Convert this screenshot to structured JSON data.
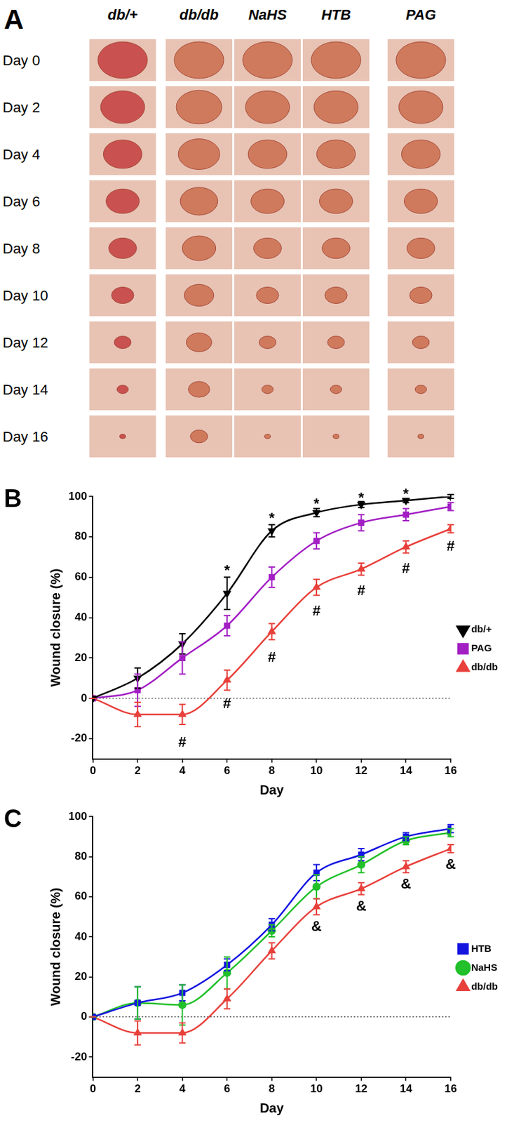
{
  "panel_a": {
    "title": "A",
    "columns": [
      "db/+",
      "db/db",
      "NaHS",
      "HTB",
      "PAG"
    ],
    "rows": [
      "Day 0",
      "Day 2",
      "Day 4",
      "Day 6",
      "Day 8",
      "Day 10",
      "Day 12",
      "Day 14",
      "Day 16"
    ]
  },
  "chart_data": [
    {
      "type": "line",
      "title": "B",
      "x_label": "Day",
      "y_label": "Wound closure (%)",
      "x": [
        0,
        2,
        4,
        6,
        8,
        10,
        12,
        14,
        16
      ],
      "xlim": [
        0,
        16
      ],
      "xticks": [
        0,
        2,
        4,
        6,
        8,
        10,
        12,
        14,
        16
      ],
      "ylim": [
        -30,
        100
      ],
      "yticks": [
        -20,
        0,
        20,
        40,
        60,
        80,
        100
      ],
      "grid": false,
      "legend": "right",
      "reference_line": {
        "y": 0,
        "line_style": "dotted"
      },
      "series": [
        {
          "name": "db/+",
          "color": "#000000",
          "marker": "triangle_down",
          "values": [
            0,
            10,
            27,
            52,
            83,
            92,
            96,
            98,
            100
          ],
          "errors": [
            0,
            5,
            5,
            8,
            3,
            2,
            1.5,
            1,
            1
          ]
        },
        {
          "name": "PAG",
          "color": "#a21fc4",
          "marker": "square",
          "values": [
            0,
            4,
            20,
            36,
            60,
            78,
            87,
            91,
            95
          ],
          "errors": [
            0,
            8,
            8,
            5,
            5,
            4,
            4,
            3,
            2
          ]
        },
        {
          "name": "db/db",
          "color": "#e8403b",
          "marker": "triangle",
          "values": [
            0,
            -8,
            -8,
            9,
            33,
            55,
            64,
            75,
            84
          ],
          "errors": [
            0,
            6,
            5,
            5,
            4,
            4,
            3,
            3,
            2
          ]
        }
      ],
      "annotations": [
        {
          "x": 6,
          "y": 63,
          "text": "*"
        },
        {
          "x": 8,
          "y": 89,
          "text": "*"
        },
        {
          "x": 10,
          "y": 96,
          "text": "*"
        },
        {
          "x": 12,
          "y": 99,
          "text": "*"
        },
        {
          "x": 14,
          "y": 101,
          "text": "*"
        },
        {
          "x": 4,
          "y": -22,
          "text": "#"
        },
        {
          "x": 6,
          "y": -3,
          "text": "#"
        },
        {
          "x": 8,
          "y": 20,
          "text": "#"
        },
        {
          "x": 10,
          "y": 43,
          "text": "#"
        },
        {
          "x": 12,
          "y": 53,
          "text": "#"
        },
        {
          "x": 14,
          "y": 64,
          "text": "#"
        },
        {
          "x": 16,
          "y": 75,
          "text": "#"
        }
      ]
    },
    {
      "type": "line",
      "title": "C",
      "x_label": "Day",
      "y_label": "Wound closure (%)",
      "x": [
        0,
        2,
        4,
        6,
        8,
        10,
        12,
        14,
        16
      ],
      "xlim": [
        0,
        16
      ],
      "xticks": [
        0,
        2,
        4,
        6,
        8,
        10,
        12,
        14,
        16
      ],
      "ylim": [
        -30,
        100
      ],
      "yticks": [
        -20,
        0,
        20,
        40,
        60,
        80,
        100
      ],
      "grid": false,
      "legend": "right",
      "reference_line": {
        "y": 0,
        "line_style": "dotted"
      },
      "series": [
        {
          "name": "HTB",
          "color": "#1515e0",
          "marker": "square",
          "values": [
            0,
            7,
            12,
            26,
            46,
            72,
            81,
            90,
            94
          ],
          "errors": [
            0,
            8,
            4,
            3,
            3,
            4,
            3,
            2,
            2
          ]
        },
        {
          "name": "NaHS",
          "color": "#22c02a",
          "marker": "circle",
          "values": [
            0,
            7,
            6,
            22,
            43,
            65,
            76,
            88,
            92
          ],
          "errors": [
            0,
            8,
            10,
            8,
            3,
            6,
            4,
            2,
            2
          ]
        },
        {
          "name": "db/db",
          "color": "#e8403b",
          "marker": "triangle",
          "values": [
            0,
            -8,
            -8,
            9,
            33,
            55,
            64,
            75,
            84
          ],
          "errors": [
            0,
            6,
            5,
            5,
            4,
            4,
            3,
            3,
            2
          ]
        }
      ],
      "annotations": [
        {
          "x": 10,
          "y": 45,
          "text": "&"
        },
        {
          "x": 12,
          "y": 55,
          "text": "&"
        },
        {
          "x": 14,
          "y": 66,
          "text": "&"
        },
        {
          "x": 16,
          "y": 76,
          "text": "&"
        }
      ]
    }
  ]
}
